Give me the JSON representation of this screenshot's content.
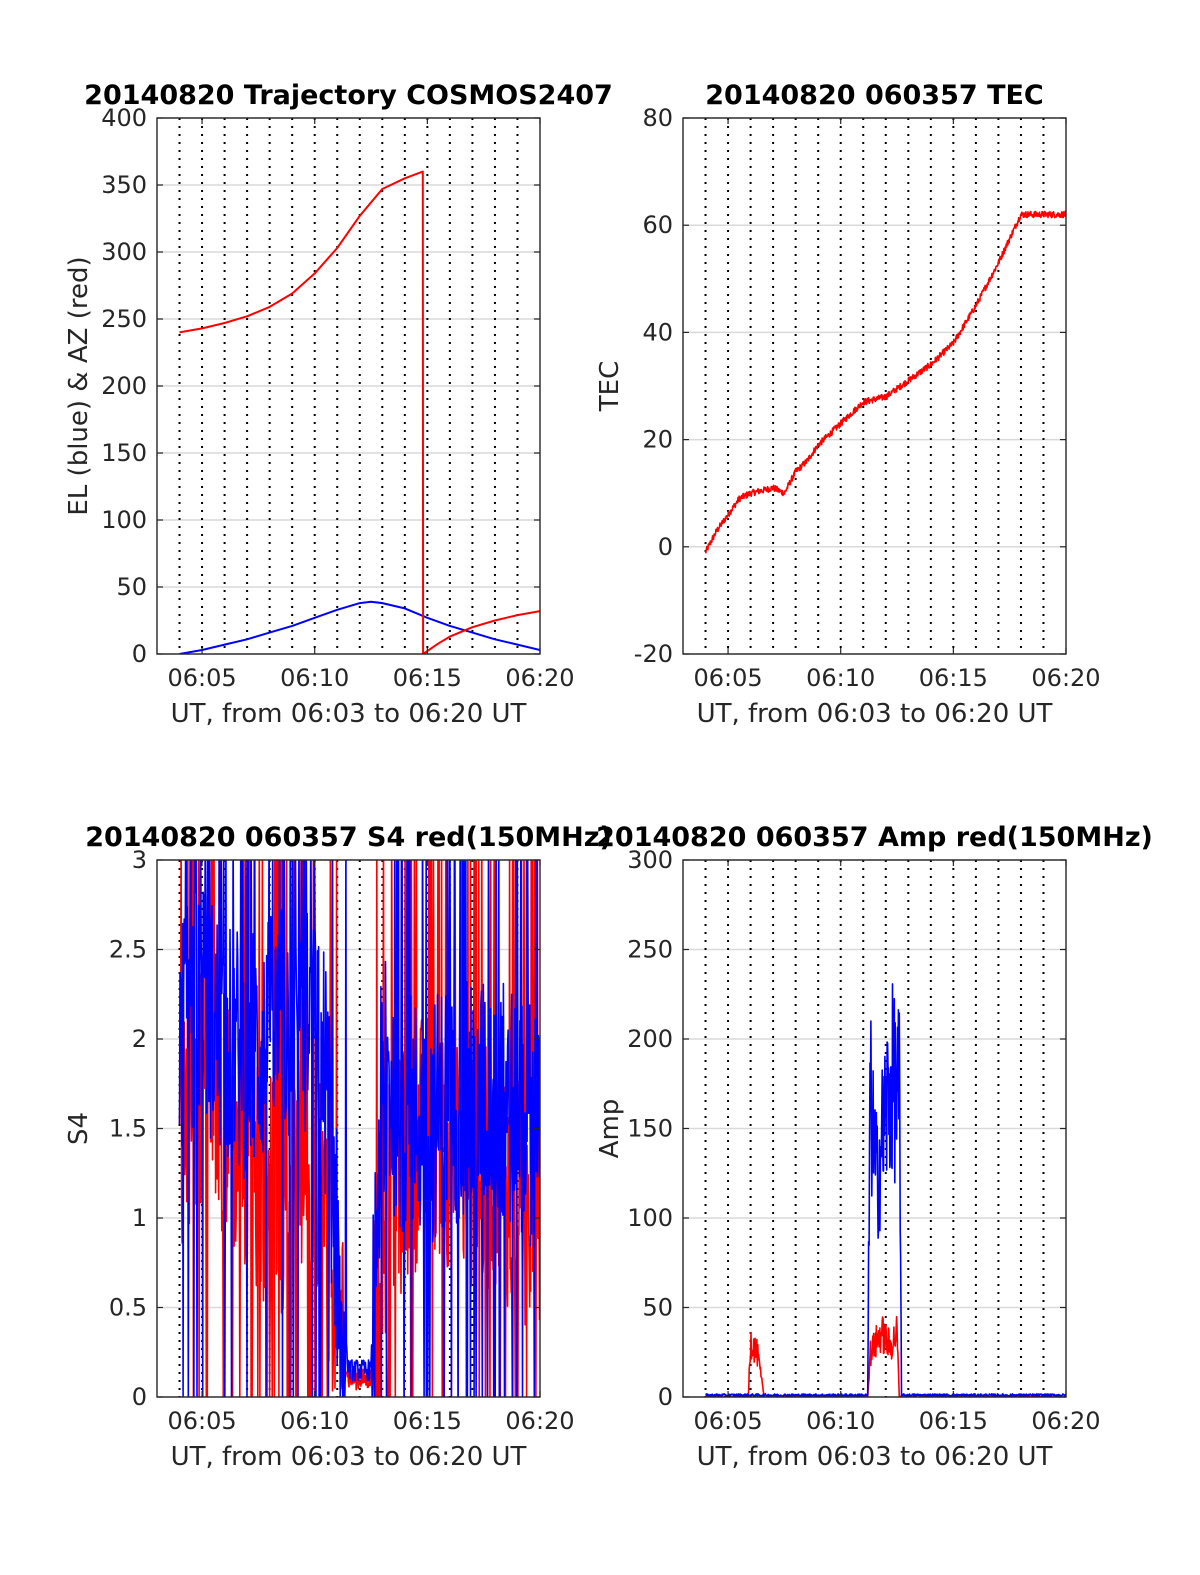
{
  "chart_data": [
    {
      "type": "line",
      "title": "20140820 Trajectory COSMOS2407",
      "xlabel": "UT, from 06:03 to 06:20 UT",
      "ylabel": "EL (blue) & AZ (red)",
      "xlim": [
        "06:03",
        "06:20"
      ],
      "ylim": [
        0,
        400
      ],
      "xticks": [
        "06:05",
        "06:10",
        "06:15",
        "06:20"
      ],
      "yticks": [
        "0",
        "50",
        "100",
        "150",
        "200",
        "250",
        "300",
        "350",
        "400"
      ],
      "grid": "on",
      "series": [
        {
          "name": "EL (blue)",
          "color": "#0000ff",
          "x": [
            "06:04",
            "06:05",
            "06:06",
            "06:07",
            "06:08",
            "06:09",
            "06:10",
            "06:11",
            "06:12",
            "06:12.5",
            "06:13",
            "06:14",
            "06:15",
            "06:16",
            "06:17",
            "06:18",
            "06:19",
            "06:20"
          ],
          "y": [
            0,
            3,
            7,
            11,
            16,
            21,
            27,
            33,
            38,
            39,
            38,
            34,
            27,
            21,
            16,
            11,
            7,
            3
          ]
        },
        {
          "name": "AZ (red)",
          "color": "#ff0000",
          "x": [
            "06:04",
            "06:05",
            "06:06",
            "06:07",
            "06:08",
            "06:09",
            "06:10",
            "06:11",
            "06:12",
            "06:13",
            "06:14",
            "06:14.8",
            "06:14.81",
            "06:15.5",
            "06:16",
            "06:17",
            "06:18",
            "06:19",
            "06:20"
          ],
          "y": [
            240,
            243,
            247,
            252,
            259,
            269,
            284,
            303,
            327,
            347,
            355,
            360,
            0,
            8,
            13,
            20,
            25,
            29,
            32
          ]
        }
      ]
    },
    {
      "type": "line",
      "title": "20140820 060357 TEC",
      "xlabel": "UT, from 06:03 to 06:20 UT",
      "ylabel": "TEC",
      "xlim": [
        "06:03",
        "06:20"
      ],
      "ylim": [
        -20,
        80
      ],
      "xticks": [
        "06:05",
        "06:10",
        "06:15",
        "06:20"
      ],
      "yticks": [
        "-20",
        "0",
        "20",
        "40",
        "60",
        "80"
      ],
      "grid": "on",
      "series": [
        {
          "color": "#ff0000",
          "x": [
            "06:04",
            "06:04.5",
            "06:05",
            "06:05.5",
            "06:06",
            "06:06.5",
            "06:07",
            "06:07.5",
            "06:08",
            "06:08.5",
            "06:09",
            "06:10",
            "06:11",
            "06:12",
            "06:13",
            "06:14",
            "06:15",
            "06:16",
            "06:17",
            "06:18",
            "06:19",
            "06:20"
          ],
          "y": [
            -1,
            3,
            6,
            9,
            10,
            10.5,
            11,
            10,
            14,
            16,
            19,
            23,
            27,
            28,
            31,
            34,
            38,
            45,
            53,
            62,
            62,
            62
          ]
        }
      ]
    },
    {
      "type": "line",
      "title": "20140820 060357 S4 red(150MHz)",
      "xlabel": "UT, from 06:03 to 06:20 UT",
      "ylabel": "S4",
      "xlim": [
        "06:03",
        "06:20"
      ],
      "ylim": [
        0,
        3
      ],
      "xticks": [
        "06:05",
        "06:10",
        "06:15",
        "06:20"
      ],
      "yticks": [
        "0",
        "0.5",
        "1",
        "1.5",
        "2",
        "2.5",
        "3"
      ],
      "grid": "on",
      "series": [
        {
          "color": "#ff0000",
          "x": [
            "06:04",
            "06:05",
            "06:06",
            "06:07",
            "06:08",
            "06:09",
            "06:10",
            "06:10.5",
            "06:11",
            "06:11.5",
            "06:12",
            "06:12.5",
            "06:13",
            "06:14",
            "06:15",
            "06:16",
            "06:17",
            "06:18",
            "06:19",
            "06:20"
          ],
          "y": [
            1.4,
            1.8,
            1.6,
            1.3,
            1.2,
            1.1,
            1.4,
            1.0,
            0.5,
            0.1,
            0.1,
            0.1,
            1.0,
            1.3,
            1.5,
            1.4,
            1.2,
            1.3,
            1.1,
            1.0
          ]
        },
        {
          "color": "#0000ff",
          "x": [
            "06:04",
            "06:05",
            "06:06",
            "06:07",
            "06:08",
            "06:09",
            "06:10",
            "06:10.5",
            "06:11",
            "06:11.5",
            "06:12",
            "06:12.5",
            "06:13",
            "06:14",
            "06:15",
            "06:16",
            "06:17",
            "06:18",
            "06:19",
            "06:20"
          ],
          "y": [
            2.0,
            2.2,
            2.0,
            1.9,
            2.0,
            2.1,
            2.0,
            1.8,
            0.8,
            0.15,
            0.15,
            0.15,
            1.8,
            1.6,
            1.5,
            1.7,
            1.6,
            1.7,
            1.6,
            1.5
          ]
        }
      ]
    },
    {
      "type": "line",
      "title": "20140820 060357 Amp red(150MHz)",
      "xlabel": "UT, from 06:03 to 06:20 UT",
      "ylabel": "Amp",
      "xlim": [
        "06:03",
        "06:20"
      ],
      "ylim": [
        0,
        300
      ],
      "xticks": [
        "06:05",
        "06:10",
        "06:15",
        "06:20"
      ],
      "yticks": [
        "0",
        "50",
        "100",
        "150",
        "200",
        "250",
        "300"
      ],
      "grid": "on",
      "series": [
        {
          "color": "#ff0000",
          "x": [
            "06:04",
            "06:05.9",
            "06:06",
            "06:06.3",
            "06:06.5",
            "06:06.6",
            "06:11.2",
            "06:11.3",
            "06:11.8",
            "06:12.2",
            "06:12.5",
            "06:12.6",
            "06:20"
          ],
          "y": [
            0,
            0,
            40,
            30,
            10,
            0,
            0,
            30,
            45,
            35,
            45,
            0,
            0
          ]
        },
        {
          "color": "#0000ff",
          "x": [
            "06:04",
            "06:11.2",
            "06:11.3",
            "06:11.6",
            "06:12",
            "06:12.3",
            "06:12.6",
            "06:12.7",
            "06:20"
          ],
          "y": [
            1,
            1,
            210,
            150,
            200,
            220,
            210,
            1,
            1
          ]
        }
      ]
    }
  ]
}
